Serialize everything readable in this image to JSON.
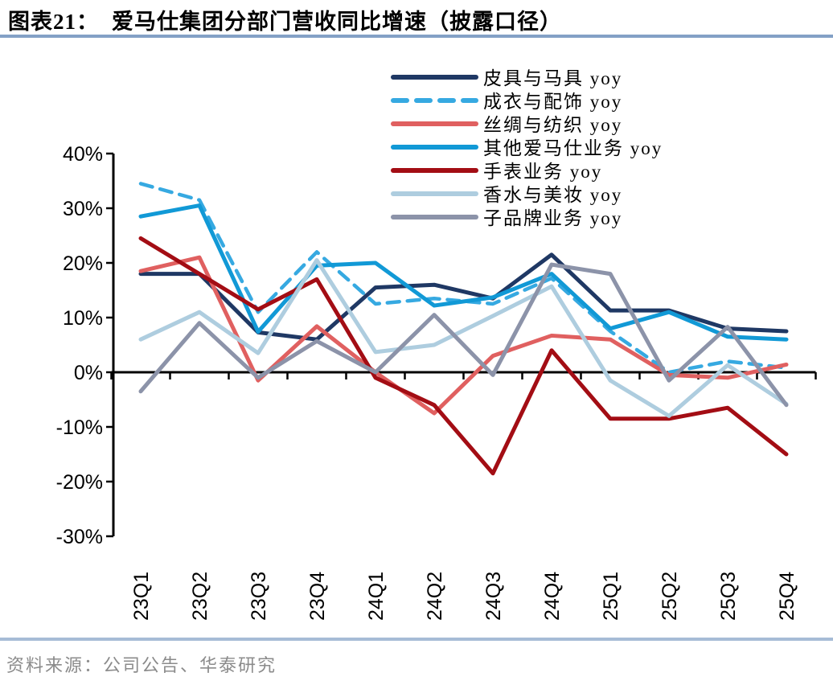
{
  "title": {
    "prefix": "图表21：",
    "text": "爱马仕集团分部门营收同比增速（披露口径）"
  },
  "source": "资料来源：公司公告、华泰研究",
  "chart_data": {
    "type": "line",
    "title": "爱马仕集团分部门营收同比增速（披露口径）",
    "categories": [
      "23Q1",
      "23Q2",
      "23Q3",
      "23Q4",
      "24Q1",
      "24Q2",
      "24Q3",
      "24Q4",
      "25Q1",
      "25Q2",
      "25Q3",
      "25Q4"
    ],
    "series": [
      {
        "name": "皮具与马具 yoy",
        "color": "#1F3864",
        "dashed": false,
        "values": [
          18,
          18,
          7.3,
          6,
          15.5,
          16,
          13.5,
          21.5,
          11.3,
          11.3,
          8,
          7.5
        ]
      },
      {
        "name": "成衣与配饰 yoy",
        "color": "#36A9E1",
        "dashed": true,
        "values": [
          34.5,
          31.5,
          11,
          22,
          12.5,
          13.5,
          12.5,
          17.2,
          7.5,
          0,
          2,
          0.8
        ]
      },
      {
        "name": "丝绸与纺织 yoy",
        "color": "#E06060",
        "dashed": false,
        "values": [
          18.5,
          21,
          -1.5,
          8.4,
          0,
          -7.5,
          3,
          6.7,
          6,
          -0.5,
          -1,
          1.4
        ]
      },
      {
        "name": "其他爱马仕业务 yoy",
        "color": "#1199D6",
        "dashed": false,
        "values": [
          28.5,
          30.5,
          7.4,
          19.5,
          20,
          12.2,
          13.7,
          18,
          8,
          11,
          6.5,
          6
        ]
      },
      {
        "name": "手表业务 yoy",
        "color": "#A30D14",
        "dashed": false,
        "values": [
          24.5,
          18,
          11.5,
          17,
          -1,
          -6,
          -18.5,
          4,
          -8.5,
          -8.5,
          -6.5,
          -15
        ]
      },
      {
        "name": "香水与美妆 yoy",
        "color": "#AECDDF",
        "dashed": false,
        "values": [
          6,
          11,
          3.5,
          20.5,
          3.7,
          5,
          10.3,
          15.7,
          -1.5,
          -8,
          1.3,
          -5.8
        ]
      },
      {
        "name": "子品牌业务 yoy",
        "color": "#8C93A9",
        "dashed": false,
        "values": [
          -3.5,
          9,
          -1,
          5.7,
          0,
          10.5,
          -0.5,
          19.7,
          18,
          -1.5,
          8.3,
          -6
        ]
      }
    ],
    "yticks": [
      {
        "value": 40,
        "label": "40%"
      },
      {
        "value": 30,
        "label": "30%"
      },
      {
        "value": 20,
        "label": "20%"
      },
      {
        "value": 10,
        "label": "10%"
      },
      {
        "value": 0,
        "label": "0%"
      },
      {
        "value": -10,
        "label": "-10%"
      },
      {
        "value": -20,
        "label": "-20%"
      },
      {
        "value": -30,
        "label": "-30%"
      }
    ],
    "ylim": [
      -30,
      40
    ],
    "xlabel": "",
    "ylabel": "",
    "grid": false,
    "legend_position": "top-center",
    "x_axis_at_zero": true
  }
}
